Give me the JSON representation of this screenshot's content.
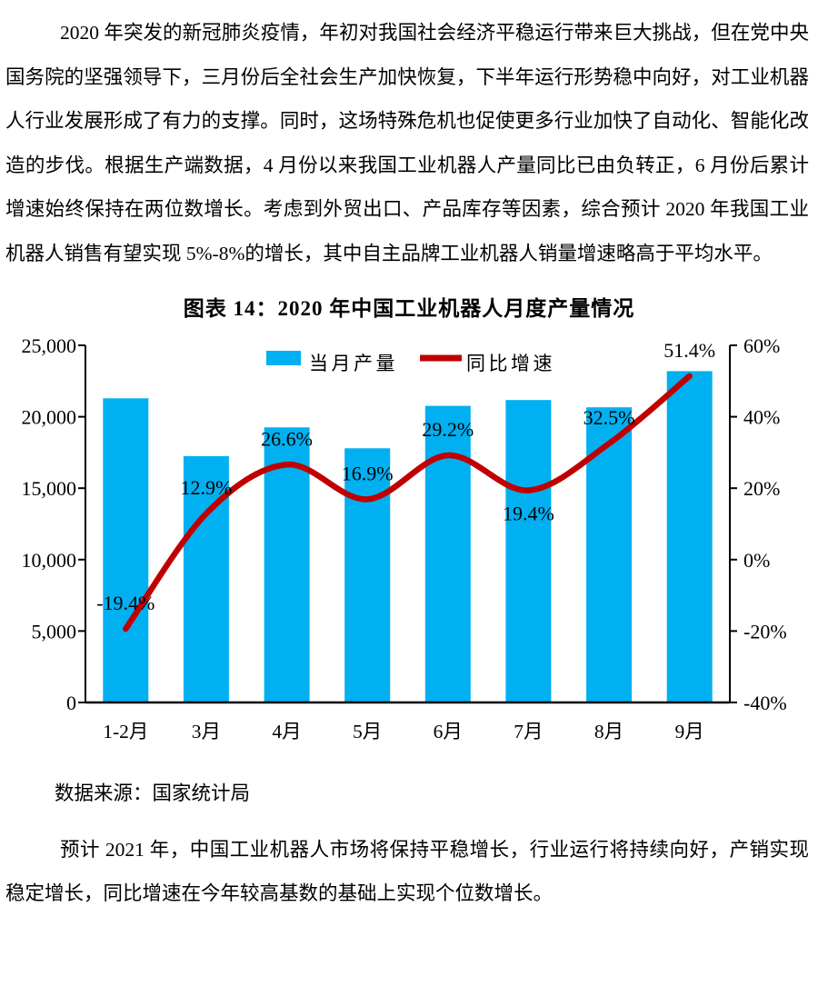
{
  "document": {
    "paragraph_1": "2020 年突发的新冠肺炎疫情，年初对我国社会经济平稳运行带来巨大挑战，但在党中央国务院的坚强领导下，三月份后全社会生产加快恢复，下半年运行形势稳中向好，对工业机器人行业发展形成了有力的支撑。同时，这场特殊危机也促使更多行业加快了自动化、智能化改造的步伐。根据生产端数据，4 月份以来我国工业机器人产量同比已由负转正，6 月份后累计增速始终保持在两位数增长。考虑到外贸出口、产品库存等因素，综合预计 2020 年我国工业机器人销售有望实现 5%-8%的增长，其中自主品牌工业机器人销量增速略高于平均水平。",
    "chart_caption": "图表 14：2020 年中国工业机器人月度产量情况",
    "source_note": "数据来源：国家统计局",
    "paragraph_2": "预计 2021 年，中国工业机器人市场将保持平稳增长，行业运行将持续向好，产销实现稳定增长，同比增速在今年较高基数的基础上实现个位数增长。"
  },
  "chart_data": {
    "type": "bar+line",
    "title": "2020 年中国工业机器人月度产量情况",
    "categories": [
      "1-2月",
      "3月",
      "4月",
      "5月",
      "6月",
      "7月",
      "8月",
      "9月"
    ],
    "series": [
      {
        "name": "当月产量",
        "type": "bar",
        "axis": "left",
        "color": "#00B0F0",
        "values": [
          21292,
          17241,
          19257,
          17794,
          20761,
          21170,
          20663,
          23194
        ]
      },
      {
        "name": "同比增速",
        "type": "line",
        "axis": "right",
        "color": "#C00000",
        "values": [
          -19.4,
          12.9,
          26.6,
          16.9,
          29.2,
          19.4,
          32.5,
          51.4
        ],
        "point_labels": [
          "-19.4%",
          "12.9%",
          "26.6%",
          "16.9%",
          "29.2%",
          "19.4%",
          "32.5%",
          "51.4%"
        ],
        "label_positions": [
          "above",
          "above",
          "above",
          "above",
          "above",
          "below",
          "above",
          "above"
        ]
      }
    ],
    "left_axis": {
      "min": 0,
      "max": 25000,
      "step": 5000,
      "ticks": [
        "0",
        "5,000",
        "10,000",
        "15,000",
        "20,000",
        "25,000"
      ]
    },
    "right_axis": {
      "min": -40,
      "max": 60,
      "step": 20,
      "ticks": [
        "-40%",
        "-20%",
        "0%",
        "20%",
        "40%",
        "60%"
      ]
    },
    "legend_position": "top-inside",
    "grid": false,
    "axis_color": "#000000",
    "text_color": "#000000"
  }
}
